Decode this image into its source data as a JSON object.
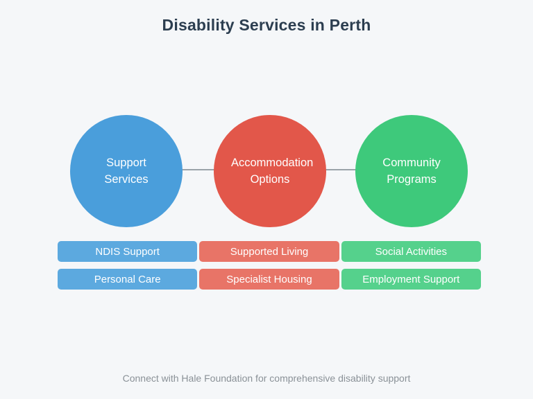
{
  "title": "Disability Services in Perth",
  "footer": "Connect with Hale Foundation for comprehensive disability support",
  "colors": {
    "background": "#F5F7F9",
    "title_text": "#2C3E50",
    "footer_text": "#8A9197",
    "connector": "#99A3A9",
    "circle_blue": "#4A9EDB",
    "circle_red": "#E2574A",
    "circle_green": "#3EC97B",
    "pill_blue": "#5CA9DF",
    "pill_red": "#E87467",
    "pill_green": "#55D18C",
    "label_text": "#FFFFFF"
  },
  "columns": [
    {
      "circle_label": "Support Services",
      "items": [
        "NDIS Support",
        "Personal Care"
      ]
    },
    {
      "circle_label": "Accommodation Options",
      "items": [
        "Supported Living",
        "Specialist Housing"
      ]
    },
    {
      "circle_label": "Community Programs",
      "items": [
        "Social Activities",
        "Employment Support"
      ]
    }
  ]
}
